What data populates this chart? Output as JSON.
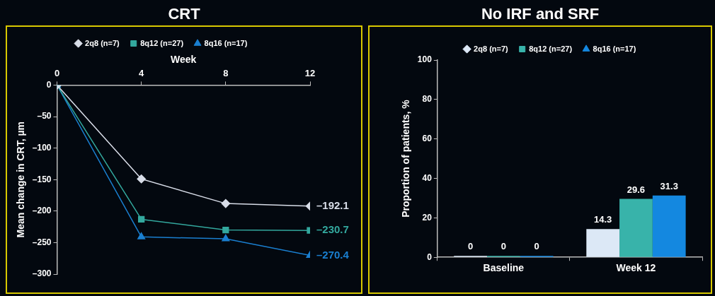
{
  "chart_data": [
    {
      "type": "line",
      "title": "CRT",
      "xlabel": "Week",
      "ylabel": "Mean change in CRT, µm",
      "x": [
        0,
        4,
        8,
        12
      ],
      "xlim": [
        0,
        12
      ],
      "xticks": [
        0,
        4,
        8,
        12
      ],
      "ylim": [
        -300,
        0
      ],
      "yticks": [
        0,
        {
          "value": -50,
          "label": "–50"
        },
        {
          "value": -100,
          "label": "–100"
        },
        {
          "value": -150,
          "label": "–150"
        },
        {
          "value": -200,
          "label": "–200"
        },
        {
          "value": -250,
          "label": "–250"
        },
        {
          "value": -300,
          "label": "–300"
        }
      ],
      "grid": false,
      "legend": "top",
      "series": [
        {
          "name": "2q8 (n=7)",
          "color": "#d8dde8",
          "marker": "diamond",
          "values": [
            0,
            -149,
            -188,
            -192.1
          ],
          "value_labels": [
            null,
            null,
            null,
            "–192.1"
          ]
        },
        {
          "name": "8q12 (n=27)",
          "color": "#33a89e",
          "marker": "square",
          "values": [
            0,
            -213,
            -230,
            -230.7
          ],
          "value_labels": [
            null,
            null,
            null,
            "–230.7"
          ]
        },
        {
          "name": "8q16 (n=17)",
          "color": "#1a7fd0",
          "marker": "triangle",
          "values": [
            0,
            -241,
            -244,
            -270.4
          ],
          "value_labels": [
            null,
            null,
            null,
            "–270.4"
          ]
        }
      ]
    },
    {
      "type": "bar",
      "title": "No IRF and SRF",
      "ylabel": "Proportion of patients, %",
      "categories": [
        "Baseline",
        "Week 12"
      ],
      "ylim": [
        0,
        100
      ],
      "yticks": [
        0,
        20,
        40,
        60,
        80,
        100
      ],
      "grid": false,
      "legend": "top",
      "data_labels": true,
      "series": [
        {
          "name": "2q8 (n=7)",
          "color": "#dce8f6",
          "marker": "diamond",
          "values": [
            0,
            14.3
          ]
        },
        {
          "name": "8q12 (n=27)",
          "color": "#38b3aa",
          "marker": "square",
          "values": [
            0,
            29.6
          ]
        },
        {
          "name": "8q16 (n=17)",
          "color": "#1488e0",
          "marker": "triangle",
          "values": [
            0,
            31.3
          ]
        }
      ]
    }
  ]
}
